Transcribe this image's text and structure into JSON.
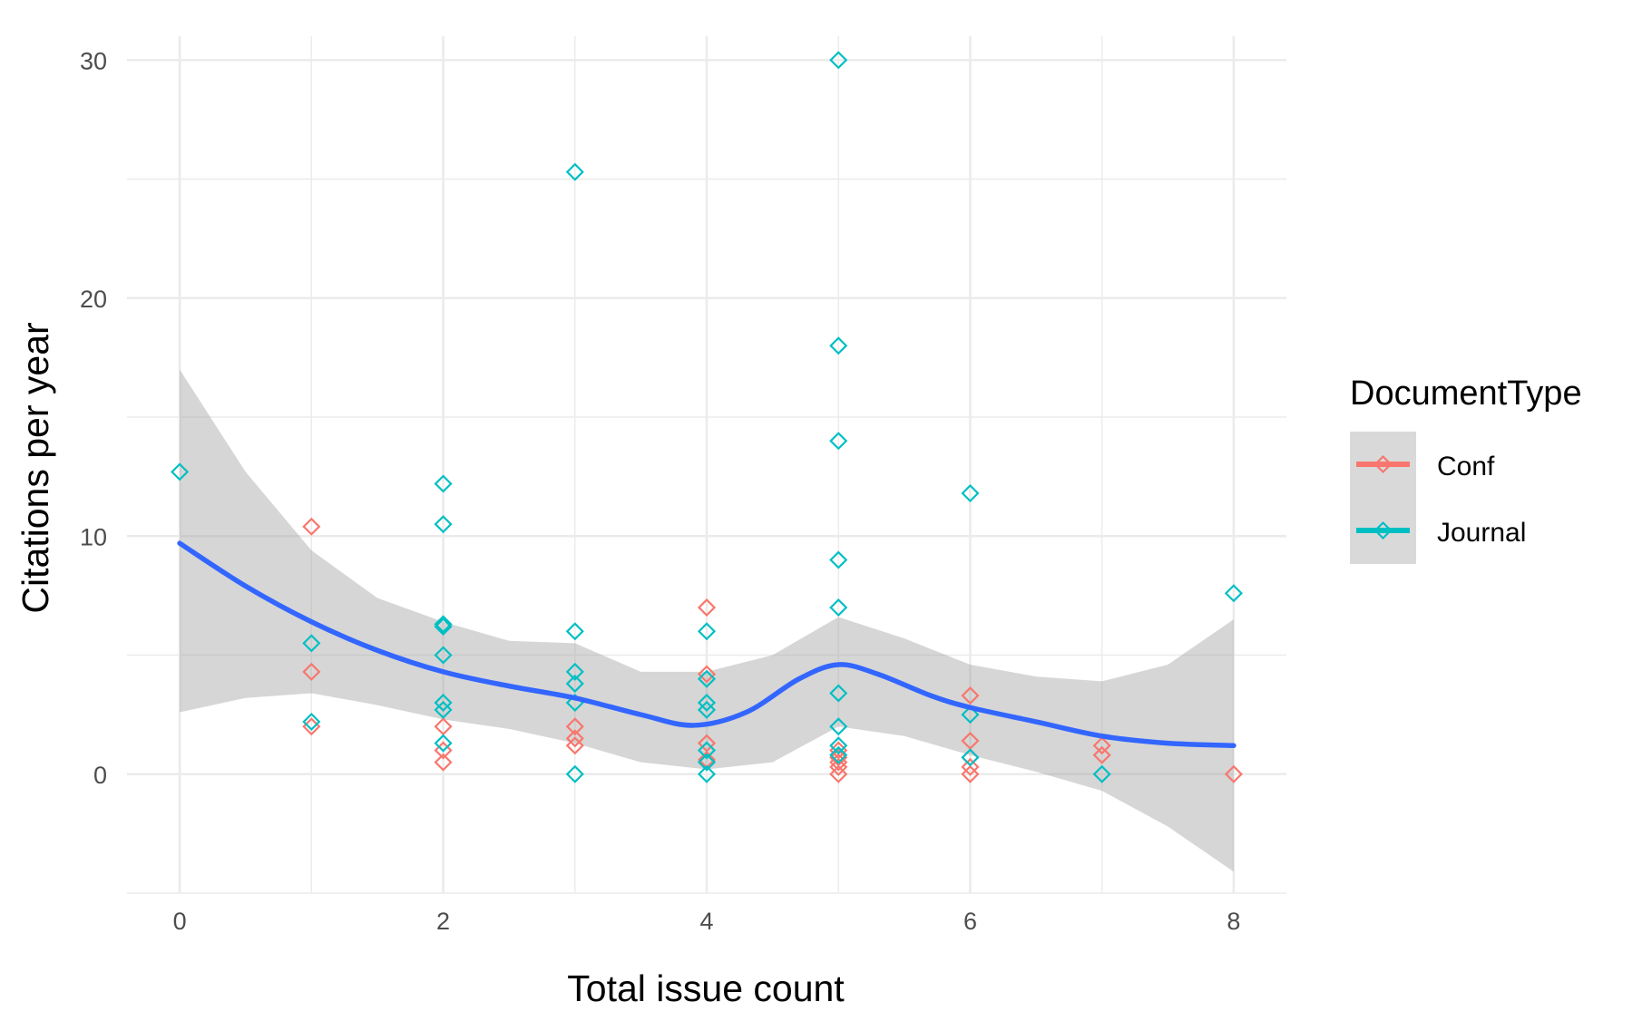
{
  "chart_data": {
    "type": "scatter",
    "xlabel": "Total issue count",
    "ylabel": "Citations per year",
    "xlim": [
      -0.4,
      8.4
    ],
    "ylim": [
      -5,
      31
    ],
    "x_ticks": [
      0,
      2,
      4,
      6,
      8
    ],
    "y_ticks": [
      0,
      10,
      20,
      30
    ],
    "x_tick_labels": [
      "0",
      "2",
      "4",
      "6",
      "8"
    ],
    "y_tick_labels": [
      "0",
      "10",
      "20",
      "30"
    ],
    "grid": true,
    "marker": "open-diamond",
    "legend": {
      "title": "DocumentType",
      "position": "right",
      "entries": [
        {
          "label": "Conf",
          "color": "#F8766D"
        },
        {
          "label": "Journal",
          "color": "#00BFC4"
        }
      ]
    },
    "series": [
      {
        "name": "Conf",
        "color": "#F8766D",
        "points": [
          [
            1,
            10.4
          ],
          [
            1,
            4.3
          ],
          [
            1,
            2.0
          ],
          [
            2,
            2.0
          ],
          [
            2,
            1.0
          ],
          [
            2,
            0.5
          ],
          [
            3,
            2.0
          ],
          [
            3,
            1.5
          ],
          [
            3,
            1.2
          ],
          [
            4,
            7.0
          ],
          [
            4,
            4.2
          ],
          [
            4,
            1.3
          ],
          [
            4,
            0.6
          ],
          [
            5,
            1.0
          ],
          [
            5,
            0.7
          ],
          [
            5,
            0.5
          ],
          [
            5,
            0.3
          ],
          [
            5,
            0.0
          ],
          [
            6,
            3.3
          ],
          [
            6,
            1.4
          ],
          [
            6,
            0.7
          ],
          [
            6,
            0.3
          ],
          [
            6,
            0.0
          ],
          [
            7,
            1.2
          ],
          [
            7,
            0.8
          ],
          [
            8,
            0.0
          ]
        ]
      },
      {
        "name": "Journal",
        "color": "#00BFC4",
        "points": [
          [
            0,
            12.7
          ],
          [
            1,
            5.5
          ],
          [
            1,
            2.2
          ],
          [
            2,
            12.2
          ],
          [
            2,
            10.5
          ],
          [
            2,
            6.3
          ],
          [
            2,
            6.2
          ],
          [
            2,
            5.0
          ],
          [
            2,
            3.0
          ],
          [
            2,
            2.7
          ],
          [
            2,
            1.3
          ],
          [
            3,
            25.3
          ],
          [
            3,
            6.0
          ],
          [
            3,
            4.3
          ],
          [
            3,
            3.8
          ],
          [
            3,
            3.0
          ],
          [
            3,
            0.0
          ],
          [
            4,
            6.0
          ],
          [
            4,
            4.0
          ],
          [
            4,
            3.0
          ],
          [
            4,
            2.7
          ],
          [
            4,
            1.0
          ],
          [
            4,
            0.5
          ],
          [
            4,
            0.0
          ],
          [
            5,
            30.0
          ],
          [
            5,
            18.0
          ],
          [
            5,
            14.0
          ],
          [
            5,
            9.0
          ],
          [
            5,
            7.0
          ],
          [
            5,
            3.4
          ],
          [
            5,
            2.0
          ],
          [
            5,
            1.2
          ],
          [
            5,
            0.8
          ],
          [
            6,
            11.8
          ],
          [
            6,
            2.5
          ],
          [
            6,
            0.7
          ],
          [
            7,
            0.0
          ],
          [
            8,
            7.6
          ]
        ]
      }
    ],
    "smooth": {
      "color": "#3366FF",
      "band_color": "#999999",
      "fit": [
        [
          0,
          9.7
        ],
        [
          0.5,
          7.9
        ],
        [
          1,
          6.4
        ],
        [
          1.5,
          5.2
        ],
        [
          2,
          4.3
        ],
        [
          2.5,
          3.7
        ],
        [
          3,
          3.2
        ],
        [
          3.5,
          2.5
        ],
        [
          3.9,
          2.05
        ],
        [
          4.3,
          2.6
        ],
        [
          4.7,
          4.0
        ],
        [
          5,
          4.6
        ],
        [
          5.3,
          4.2
        ],
        [
          5.7,
          3.3
        ],
        [
          6,
          2.8
        ],
        [
          6.5,
          2.2
        ],
        [
          7,
          1.6
        ],
        [
          7.5,
          1.3
        ],
        [
          8,
          1.2
        ]
      ],
      "lower": [
        [
          0,
          2.6
        ],
        [
          0.5,
          3.2
        ],
        [
          1,
          3.4
        ],
        [
          1.5,
          2.9
        ],
        [
          2,
          2.3
        ],
        [
          2.5,
          1.9
        ],
        [
          3,
          1.3
        ],
        [
          3.5,
          0.5
        ],
        [
          4,
          0.2
        ],
        [
          4.5,
          0.5
        ],
        [
          5,
          2.0
        ],
        [
          5.5,
          1.6
        ],
        [
          6,
          0.8
        ],
        [
          6.5,
          0.1
        ],
        [
          7,
          -0.7
        ],
        [
          7.5,
          -2.2
        ],
        [
          8,
          -4.1
        ]
      ],
      "upper": [
        [
          0,
          17.0
        ],
        [
          0.5,
          12.7
        ],
        [
          1,
          9.4
        ],
        [
          1.5,
          7.4
        ],
        [
          2,
          6.4
        ],
        [
          2.5,
          5.6
        ],
        [
          3,
          5.5
        ],
        [
          3.5,
          4.3
        ],
        [
          4,
          4.3
        ],
        [
          4.5,
          5.0
        ],
        [
          5,
          6.6
        ],
        [
          5.5,
          5.7
        ],
        [
          6,
          4.6
        ],
        [
          6.5,
          4.1
        ],
        [
          7,
          3.9
        ],
        [
          7.5,
          4.6
        ],
        [
          8,
          6.5
        ]
      ]
    }
  }
}
